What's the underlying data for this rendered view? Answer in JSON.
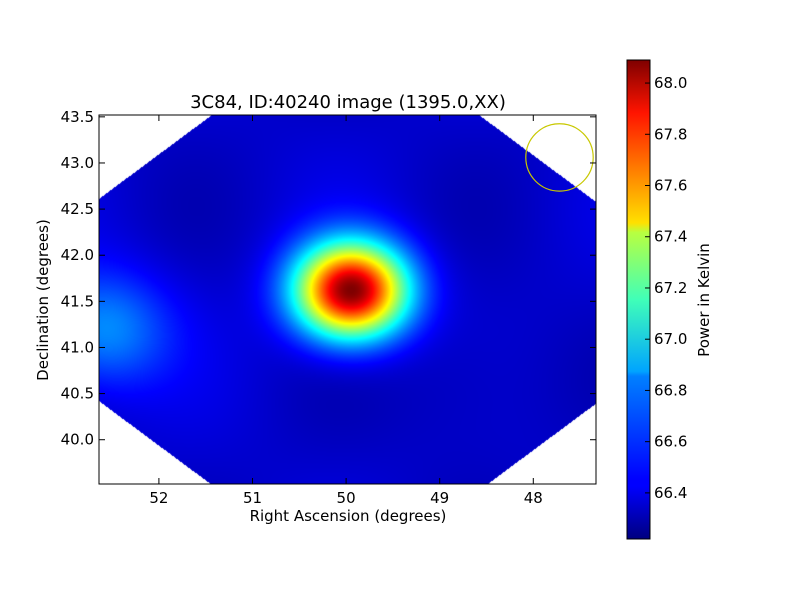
{
  "chart_data": {
    "type": "heatmap",
    "title": "3C84, ID:40240 image (1395.0,XX)",
    "xlabel": "Right Ascension (degrees)",
    "ylabel": "Declination (degrees)",
    "xlim": [
      52.64,
      47.33
    ],
    "ylim": [
      39.52,
      43.52
    ],
    "x_ticks": [
      52,
      51,
      50,
      49,
      48
    ],
    "x_tick_labels": [
      "52",
      "51",
      "50",
      "49",
      "48"
    ],
    "y_ticks": [
      40.0,
      40.5,
      41.0,
      41.5,
      42.0,
      42.5,
      43.0,
      43.5
    ],
    "y_tick_labels": [
      "40.0",
      "40.5",
      "41.0",
      "41.5",
      "42.0",
      "42.5",
      "43.0",
      "43.5"
    ],
    "colormap": "jet",
    "colorbar": {
      "label": "Power in Kelvin",
      "range": [
        66.22,
        68.09
      ],
      "ticks": [
        66.4,
        66.6,
        66.8,
        67.0,
        67.2,
        67.4,
        67.6,
        67.8,
        68.0
      ],
      "tick_labels": [
        "66.4",
        "66.6",
        "66.8",
        "67.0",
        "67.2",
        "67.4",
        "67.6",
        "67.8",
        "68.0"
      ]
    },
    "background_level": 66.36,
    "sources": [
      {
        "ra": 49.95,
        "dec": 41.62,
        "peak": 68.09,
        "sigma_ra": 0.42,
        "sigma_dec": 0.36
      },
      {
        "ra": 52.6,
        "dec": 41.2,
        "peak": 66.72,
        "sigma_ra": 0.5,
        "sigma_dec": 0.45
      }
    ],
    "beam_circle": {
      "ra": 47.72,
      "dec": 43.06,
      "radius_deg": 0.36,
      "color": "#c8c800"
    },
    "grid": false
  }
}
